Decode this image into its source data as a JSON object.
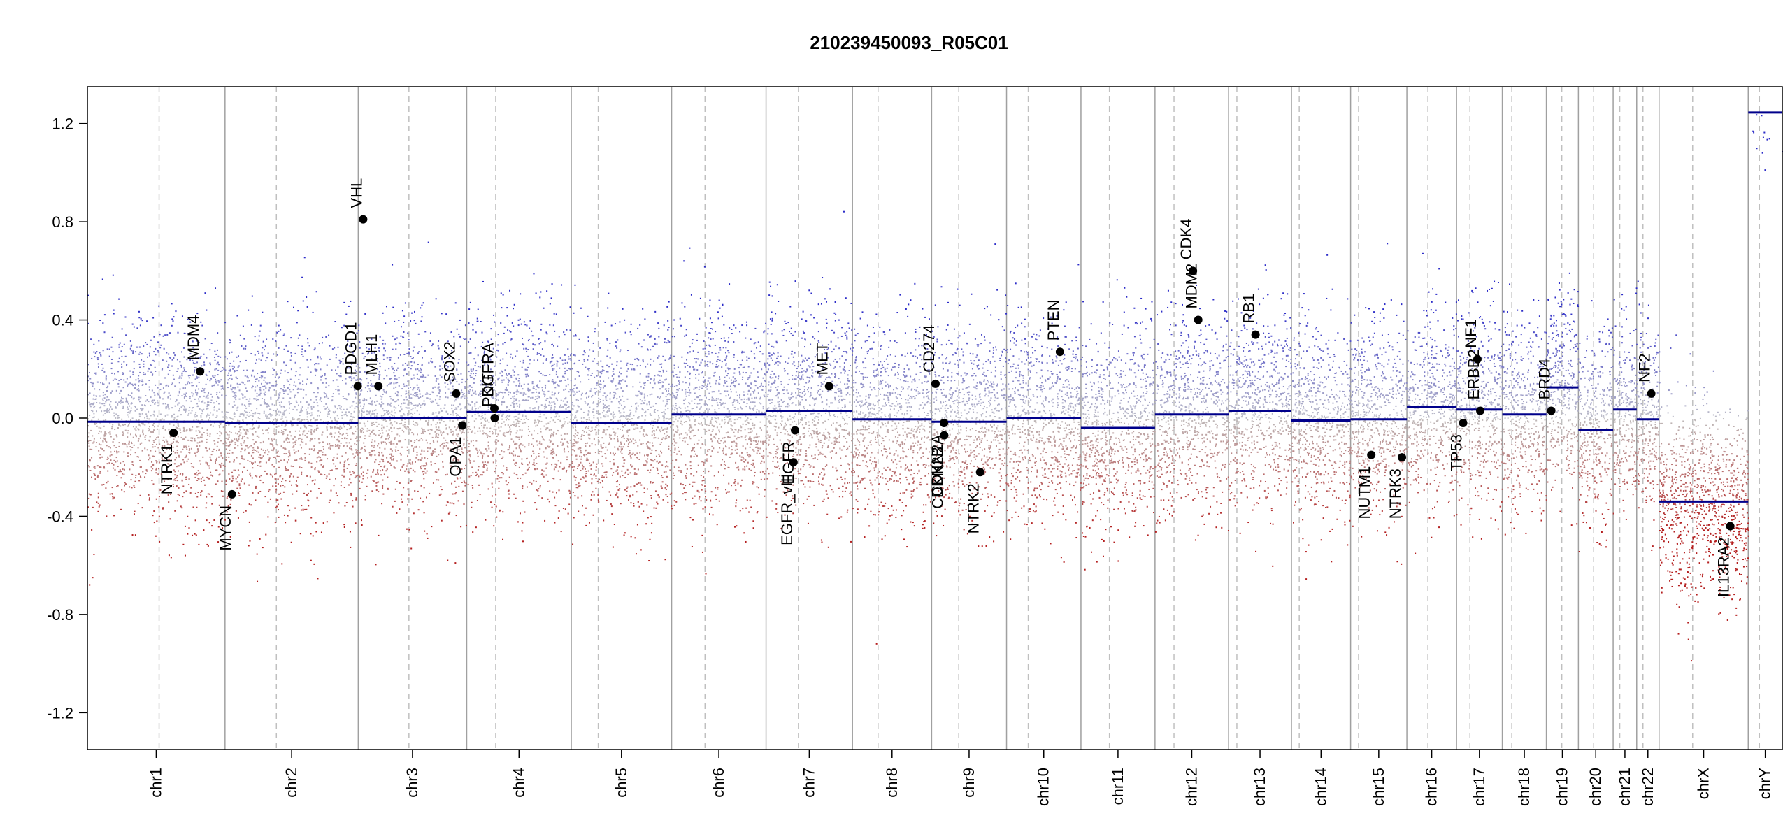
{
  "chart_data": {
    "type": "scatter",
    "title": "210239450093_R05C01",
    "xlabel": "",
    "ylabel": "",
    "ylim": [
      -1.35,
      1.35
    ],
    "yticks": [
      -1.2,
      -0.8,
      -0.4,
      0.0,
      0.4,
      0.8,
      1.2
    ],
    "ytick_labels": [
      "-1.2",
      "-0.8",
      "-0.4",
      "0.0",
      "0.4",
      "0.8",
      "1.2"
    ],
    "genome_range": [
      0,
      1000
    ],
    "chromosomes": [
      {
        "name": "chr1",
        "start": 0,
        "end": 81.2,
        "centromere": 42.3,
        "segment": -0.015
      },
      {
        "name": "chr2",
        "start": 81.2,
        "end": 159.8,
        "centromere": 111.5,
        "segment": -0.02
      },
      {
        "name": "chr3",
        "start": 159.8,
        "end": 223.8,
        "centromere": 189.7,
        "segment": 0.0
      },
      {
        "name": "chr4",
        "start": 223.8,
        "end": 285.5,
        "centromere": 240.9,
        "segment": 0.025
      },
      {
        "name": "chr5",
        "start": 285.5,
        "end": 344.7,
        "centromere": 301.4,
        "segment": -0.02
      },
      {
        "name": "chr6",
        "start": 344.7,
        "end": 400.4,
        "centromere": 364.4,
        "segment": 0.015
      },
      {
        "name": "chr7",
        "start": 400.4,
        "end": 451.4,
        "centromere": 419.5,
        "segment": 0.03
      },
      {
        "name": "chr8",
        "start": 451.4,
        "end": 498.1,
        "centromere": 466.5,
        "segment": -0.005
      },
      {
        "name": "chr9",
        "start": 498.1,
        "end": 542.3,
        "centromere": 514.1,
        "segment": -0.015
      },
      {
        "name": "chr10",
        "start": 542.3,
        "end": 586.2,
        "centromere": 555.1,
        "segment": 0.0
      },
      {
        "name": "chr11",
        "start": 586.2,
        "end": 629.9,
        "centromere": 603.0,
        "segment": -0.04
      },
      {
        "name": "chr12",
        "start": 629.9,
        "end": 673.3,
        "centromere": 641.1,
        "segment": 0.015
      },
      {
        "name": "chr13",
        "start": 673.3,
        "end": 710.4,
        "centromere": 678.2,
        "segment": 0.03
      },
      {
        "name": "chr14",
        "start": 710.4,
        "end": 745.3,
        "centromere": 715.0,
        "segment": -0.01
      },
      {
        "name": "chr15",
        "start": 745.3,
        "end": 778.5,
        "centromere": 750.0,
        "segment": -0.005
      },
      {
        "name": "chr16",
        "start": 778.5,
        "end": 807.8,
        "centromere": 790.9,
        "segment": 0.045
      },
      {
        "name": "chr17",
        "start": 807.8,
        "end": 834.8,
        "centromere": 815.7,
        "segment": 0.035
      },
      {
        "name": "chr18",
        "start": 834.8,
        "end": 860.8,
        "centromere": 840.4,
        "segment": 0.015
      },
      {
        "name": "chr19",
        "start": 860.8,
        "end": 879.7,
        "centromere": 869.9,
        "segment": 0.125
      },
      {
        "name": "chr20",
        "start": 879.7,
        "end": 900.2,
        "centromere": 888.7,
        "segment": -0.05
      },
      {
        "name": "chr21",
        "start": 900.2,
        "end": 914.1,
        "centromere": 904.1,
        "segment": 0.035
      },
      {
        "name": "chr22",
        "start": 914.1,
        "end": 927.3,
        "centromere": 917.8,
        "segment": -0.005
      },
      {
        "name": "chrX",
        "start": 927.3,
        "end": 979.9,
        "centromere": 947.1,
        "segment": -0.34
      },
      {
        "name": "chrY",
        "start": 979.9,
        "end": 1000,
        "centromere": 986.5,
        "segment": 1.245
      }
    ],
    "genes": [
      {
        "name": "NTRK1",
        "x": 50.8,
        "y": -0.06
      },
      {
        "name": "MDM4",
        "x": 66.5,
        "y": 0.19
      },
      {
        "name": "MYCN",
        "x": 85.3,
        "y": -0.31
      },
      {
        "name": "PDGD1",
        "x": 159.5,
        "y": 0.13
      },
      {
        "name": "VHL",
        "x": 162.7,
        "y": 0.81
      },
      {
        "name": "MLH1",
        "x": 171.7,
        "y": 0.13
      },
      {
        "name": "SOX2",
        "x": 217.6,
        "y": 0.1
      },
      {
        "name": "OPA1",
        "x": 221.2,
        "y": -0.03
      },
      {
        "name": "KIT",
        "x": 240.1,
        "y": 0.04
      },
      {
        "name": "PDGFRA",
        "x": 240.3,
        "y": 0.0
      },
      {
        "name": "EGFR",
        "x": 417.5,
        "y": -0.05
      },
      {
        "name": "EGFR_vIII",
        "x": 416.6,
        "y": -0.18
      },
      {
        "name": "MET",
        "x": 437.6,
        "y": 0.13
      },
      {
        "name": "CD274",
        "x": 500.4,
        "y": 0.14
      },
      {
        "name": "CDKN2A",
        "x": 505.4,
        "y": -0.02
      },
      {
        "name": "CDKN2B",
        "x": 505.5,
        "y": -0.07
      },
      {
        "name": "NTRK2",
        "x": 526.7,
        "y": -0.22
      },
      {
        "name": "PTEN",
        "x": 573.8,
        "y": 0.27
      },
      {
        "name": "MDM2",
        "x": 655.4,
        "y": 0.4
      },
      {
        "name": "CDK4",
        "x": 652.3,
        "y": 0.6
      },
      {
        "name": "RB1",
        "x": 689.2,
        "y": 0.34
      },
      {
        "name": "NUTM1",
        "x": 757.5,
        "y": -0.15
      },
      {
        "name": "NTRK3",
        "x": 775.6,
        "y": -0.16
      },
      {
        "name": "TP53",
        "x": 811.7,
        "y": -0.02
      },
      {
        "name": "ERBB2",
        "x": 821.8,
        "y": 0.03
      },
      {
        "name": "NF1",
        "x": 820.1,
        "y": 0.24
      },
      {
        "name": "BRD4",
        "x": 863.7,
        "y": 0.03
      },
      {
        "name": "NF2",
        "x": 922.7,
        "y": 0.1
      },
      {
        "name": "IL13RA2",
        "x": 969.3,
        "y": -0.44
      }
    ],
    "colors": {
      "gain": "#2b2bc8",
      "loss": "#b41e1e",
      "neutral": "#8c8c8c",
      "segment": "#00008b",
      "chr_border": "#a0a0a0",
      "centromere": "#c0c0c0",
      "gene_point": "#000000"
    }
  }
}
